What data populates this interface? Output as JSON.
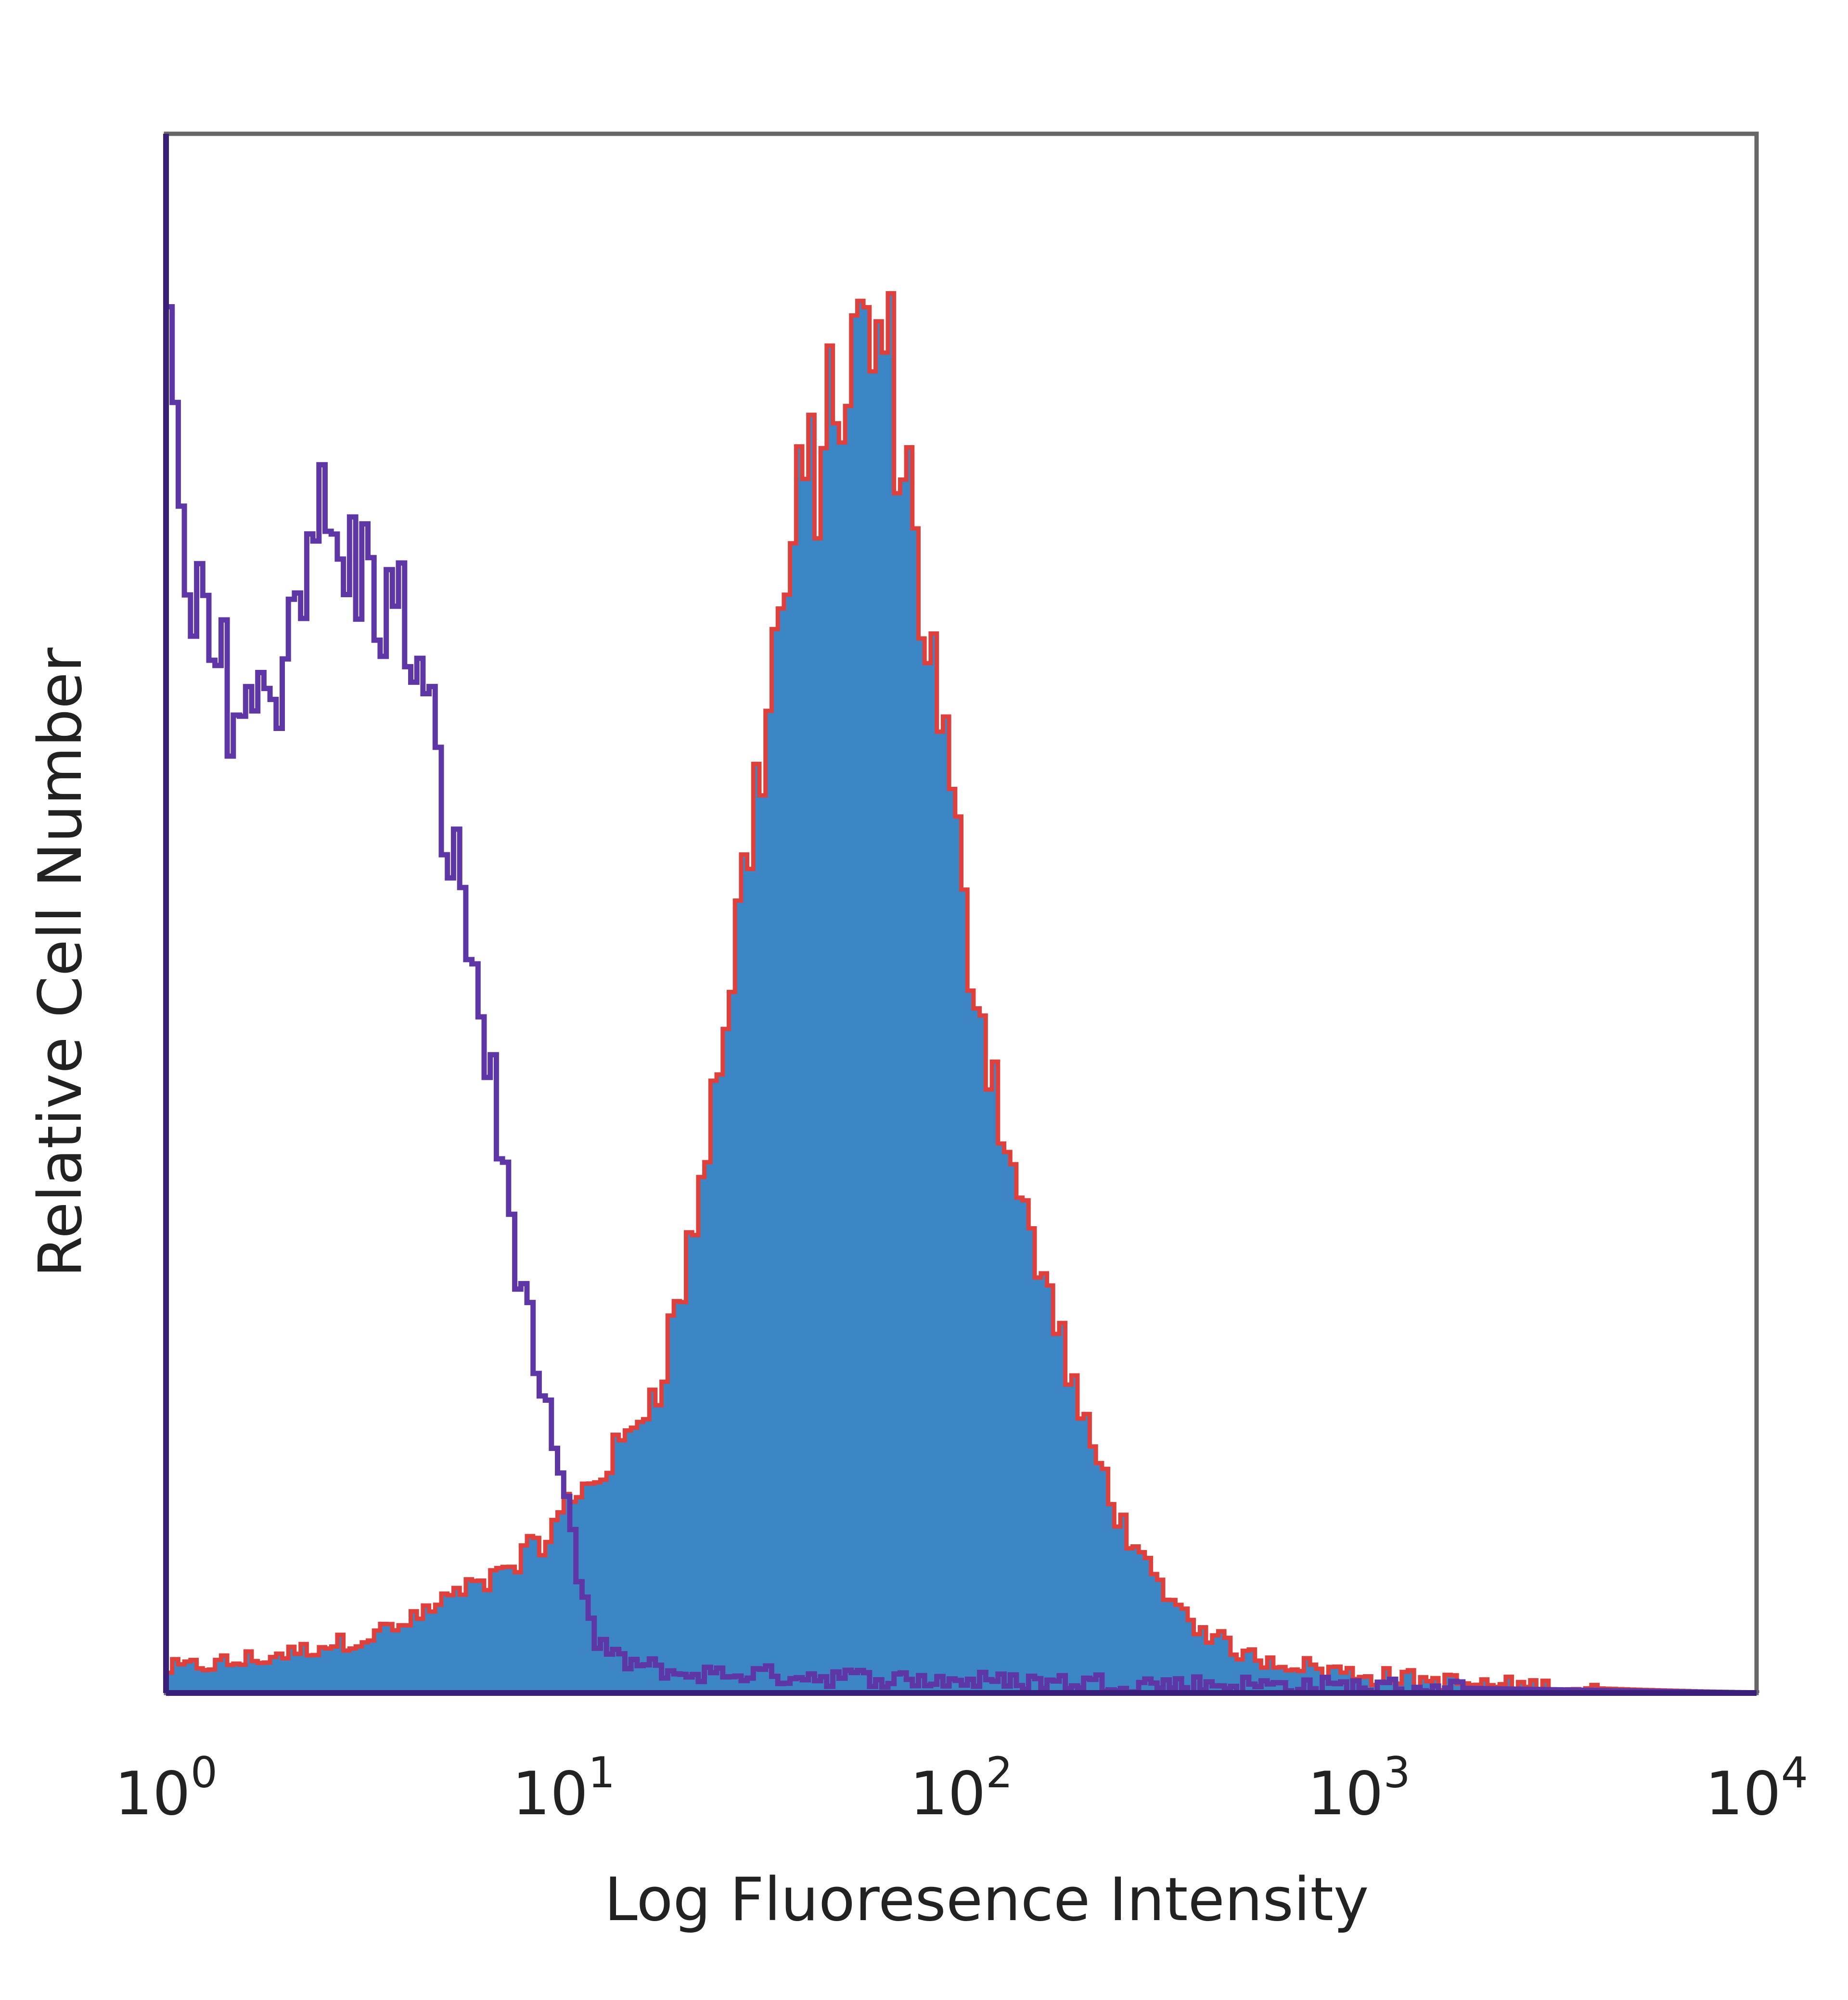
{
  "chart_data": {
    "type": "area",
    "title": "",
    "xlabel": "Log Fluoresence Intensity",
    "ylabel": "Relative Cell Number",
    "xscale": "log",
    "xlim": [
      1,
      10000
    ],
    "ylim": [
      0,
      100
    ],
    "grid": false,
    "legend": "none",
    "x_ticks": [
      {
        "base": "10",
        "exp": "0"
      },
      {
        "base": "10",
        "exp": "1"
      },
      {
        "base": "10",
        "exp": "2"
      },
      {
        "base": "10",
        "exp": "3"
      },
      {
        "base": "10",
        "exp": "4"
      }
    ],
    "series": [
      {
        "style": "filled",
        "color": "#3d86c6",
        "outline_color": "#e0403c",
        "x": [
          1,
          1.5,
          2,
          3,
          4,
          5,
          6,
          7,
          8,
          9,
          10,
          12,
          14,
          17,
          20,
          25,
          30,
          35,
          40,
          45,
          50,
          55,
          60,
          65,
          70,
          80,
          90,
          100,
          120,
          140,
          170,
          200,
          250,
          300,
          400,
          500,
          700,
          1000,
          1500,
          2000,
          3000,
          5000,
          10000
        ],
        "values": [
          1.5,
          2,
          2.5,
          3.5,
          4.5,
          6,
          7,
          8,
          9,
          10,
          12,
          14,
          16,
          20,
          27,
          43,
          58,
          70,
          77,
          81,
          84,
          86,
          87,
          85,
          80,
          69,
          60,
          50,
          39,
          31,
          24,
          17,
          11,
          7,
          4,
          2.5,
          1.8,
          1.2,
          0.8,
          0.5,
          0.4,
          0.2,
          0
        ]
      },
      {
        "style": "line",
        "color": "#5e36a6",
        "x": [
          1,
          1.1,
          1.3,
          1.5,
          1.7,
          2,
          2.3,
          2.6,
          3,
          3.5,
          4,
          5,
          6,
          7,
          8,
          9,
          10,
          11,
          12,
          14,
          17,
          20,
          30,
          50,
          100,
          10000
        ],
        "values": [
          86,
          70,
          66,
          64,
          63,
          68,
          76,
          73,
          72,
          70,
          68,
          56,
          45,
          33,
          24,
          17,
          12,
          6,
          3,
          2,
          1.5,
          1.2,
          1.2,
          1,
          0.8,
          0
        ]
      }
    ]
  }
}
